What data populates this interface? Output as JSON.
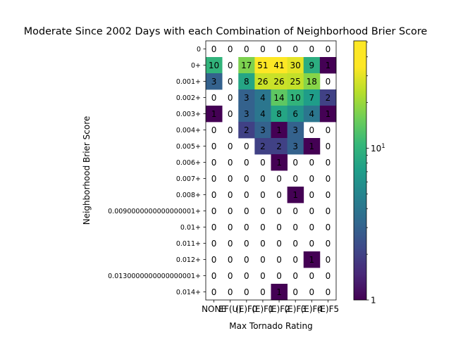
{
  "chart_data": {
    "type": "heatmap",
    "title": "Moderate Since 2002 Days with each Combination of Neighborhood Brier Score",
    "xlabel": "Max Tornado Rating",
    "ylabel": "Neighborhood Brier Score",
    "x_categories": [
      "NONE",
      "EF(U)",
      "(E)F0",
      "(E)F1",
      "(E)F2",
      "(E)F3",
      "(E)F4",
      "(E)F5"
    ],
    "y_categories": [
      "0",
      "0+",
      "0.001+",
      "0.002+",
      "0.003+",
      "0.004+",
      "0.005+",
      "0.006+",
      "0.007+",
      "0.008+",
      "0.0090000000000000001+",
      "0.01+",
      "0.011+",
      "0.012+",
      "0.0130000000000000001+",
      "0.014+"
    ],
    "values": [
      [
        0,
        0,
        0,
        0,
        0,
        0,
        0,
        0
      ],
      [
        10,
        0,
        17,
        51,
        41,
        30,
        9,
        1
      ],
      [
        3,
        0,
        8,
        26,
        26,
        25,
        18,
        0
      ],
      [
        0,
        0,
        3,
        4,
        14,
        10,
        7,
        2
      ],
      [
        1,
        0,
        3,
        4,
        8,
        6,
        4,
        1
      ],
      [
        0,
        0,
        2,
        3,
        1,
        3,
        0,
        0
      ],
      [
        0,
        0,
        0,
        2,
        2,
        3,
        1,
        0
      ],
      [
        0,
        0,
        0,
        0,
        1,
        0,
        0,
        0
      ],
      [
        0,
        0,
        0,
        0,
        0,
        0,
        0,
        0
      ],
      [
        0,
        0,
        0,
        0,
        0,
        1,
        0,
        0
      ],
      [
        0,
        0,
        0,
        0,
        0,
        0,
        0,
        0
      ],
      [
        0,
        0,
        0,
        0,
        0,
        0,
        0,
        0
      ],
      [
        0,
        0,
        0,
        0,
        0,
        0,
        0,
        0
      ],
      [
        0,
        0,
        0,
        0,
        0,
        0,
        1,
        0
      ],
      [
        0,
        0,
        0,
        0,
        0,
        0,
        0,
        0
      ],
      [
        0,
        0,
        0,
        0,
        1,
        0,
        0,
        0
      ]
    ],
    "colorbar": {
      "scale": "log",
      "min": 1,
      "max": 51,
      "colormap": "viridis",
      "tick_label": "10",
      "min_label": "1"
    },
    "grid": false
  }
}
